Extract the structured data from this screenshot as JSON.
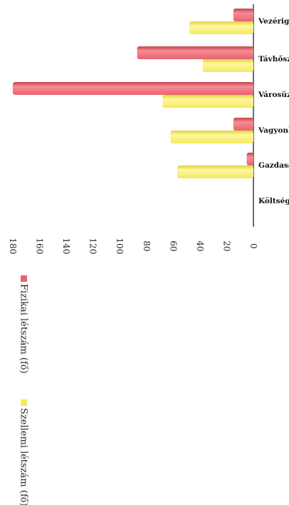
{
  "chart_data": {
    "type": "bar",
    "orientation": "vertical (image rotated 90° clockwise)",
    "categories": [
      "Vezérigazgató",
      "Távhőszolgáltatási Igazgatóság",
      "Városüzemeltetési és Kivitelezési...",
      "Vagyonkezelési Igazgatóság",
      "Gazdasági és Pénzügyi Igazgatóság",
      "Költségosztott munkavállaló"
    ],
    "series": [
      {
        "name": "Fizikai létszám (fő)",
        "color": "#e8636e",
        "values": [
          15,
          87,
          180,
          15,
          5,
          0
        ]
      },
      {
        "name": "Szellemi létszám (fő)",
        "color": "#f4ea5c",
        "values": [
          48,
          38,
          68,
          62,
          57,
          0
        ]
      }
    ],
    "y_axis": {
      "min": 0,
      "max": 180,
      "step": 20,
      "ticks": [
        "0",
        "20",
        "40",
        "60",
        "80",
        "100",
        "120",
        "140",
        "160",
        "180"
      ]
    },
    "grid": false,
    "legend": {
      "position": "bottom",
      "items": [
        "Fizikai létszám (fő)",
        "Szellemi létszám (fő)"
      ]
    }
  }
}
